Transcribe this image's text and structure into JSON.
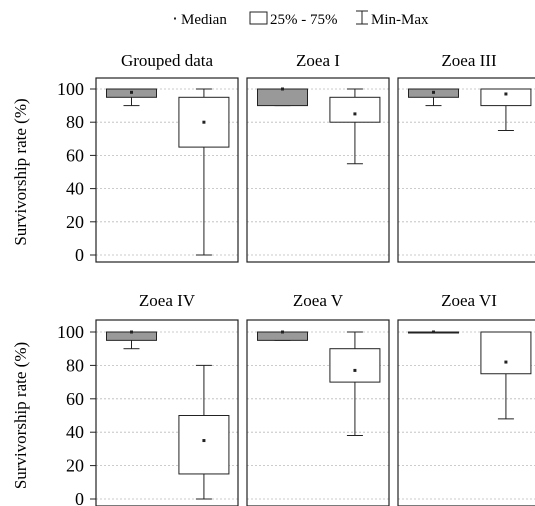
{
  "legend": {
    "median": "Median",
    "box": "25% - 75%",
    "whisker": "Min-Max"
  },
  "colors": {
    "group_1_box": "#999999",
    "group_2_box": "#ffffff",
    "stroke": "#222222",
    "grid": "#bbbbbb"
  },
  "chart_data": [
    {
      "type": "boxplot",
      "title": "Grouped data",
      "ylabel": "Survivorship rate (%)",
      "ylim": [
        0,
        100
      ],
      "yticks": [
        "0",
        "20",
        "40",
        "60",
        "80",
        "100"
      ],
      "grid": true,
      "boxes": [
        {
          "median": 98,
          "q1": 95,
          "q3": 100,
          "min": 90,
          "max": 100
        },
        {
          "median": 80,
          "q1": 65,
          "q3": 95,
          "min": 0,
          "max": 100
        }
      ]
    },
    {
      "type": "boxplot",
      "title": "Zoea I",
      "ylim": [
        0,
        100
      ],
      "grid": true,
      "boxes": [
        {
          "median": 100,
          "q1": 90,
          "q3": 100,
          "min": 90,
          "max": 100
        },
        {
          "median": 85,
          "q1": 80,
          "q3": 95,
          "min": 55,
          "max": 100
        }
      ]
    },
    {
      "type": "boxplot",
      "title": "Zoea III",
      "ylim": [
        0,
        100
      ],
      "grid": true,
      "boxes": [
        {
          "median": 98,
          "q1": 95,
          "q3": 100,
          "min": 90,
          "max": 100
        },
        {
          "median": 97,
          "q1": 90,
          "q3": 100,
          "min": 75,
          "max": 100
        }
      ]
    },
    {
      "type": "boxplot",
      "title": "Zoea IV",
      "ylabel": "Survivorship rate (%)",
      "ylim": [
        0,
        100
      ],
      "yticks": [
        "0",
        "20",
        "40",
        "60",
        "80",
        "100"
      ],
      "grid": true,
      "boxes": [
        {
          "median": 100,
          "q1": 95,
          "q3": 100,
          "min": 90,
          "max": 100
        },
        {
          "median": 35,
          "q1": 15,
          "q3": 50,
          "min": 0,
          "max": 80
        }
      ]
    },
    {
      "type": "boxplot",
      "title": "Zoea V",
      "ylim": [
        0,
        100
      ],
      "grid": true,
      "boxes": [
        {
          "median": 100,
          "q1": 95,
          "q3": 100,
          "min": 95,
          "max": 100
        },
        {
          "median": 77,
          "q1": 70,
          "q3": 90,
          "min": 38,
          "max": 100
        }
      ]
    },
    {
      "type": "boxplot",
      "title": "Zoea VI",
      "ylim": [
        0,
        100
      ],
      "grid": true,
      "boxes": [
        {
          "median": 100,
          "q1": 100,
          "q3": 100,
          "min": 100,
          "max": 100
        },
        {
          "median": 82,
          "q1": 75,
          "q3": 100,
          "min": 48,
          "max": 100
        }
      ]
    }
  ]
}
